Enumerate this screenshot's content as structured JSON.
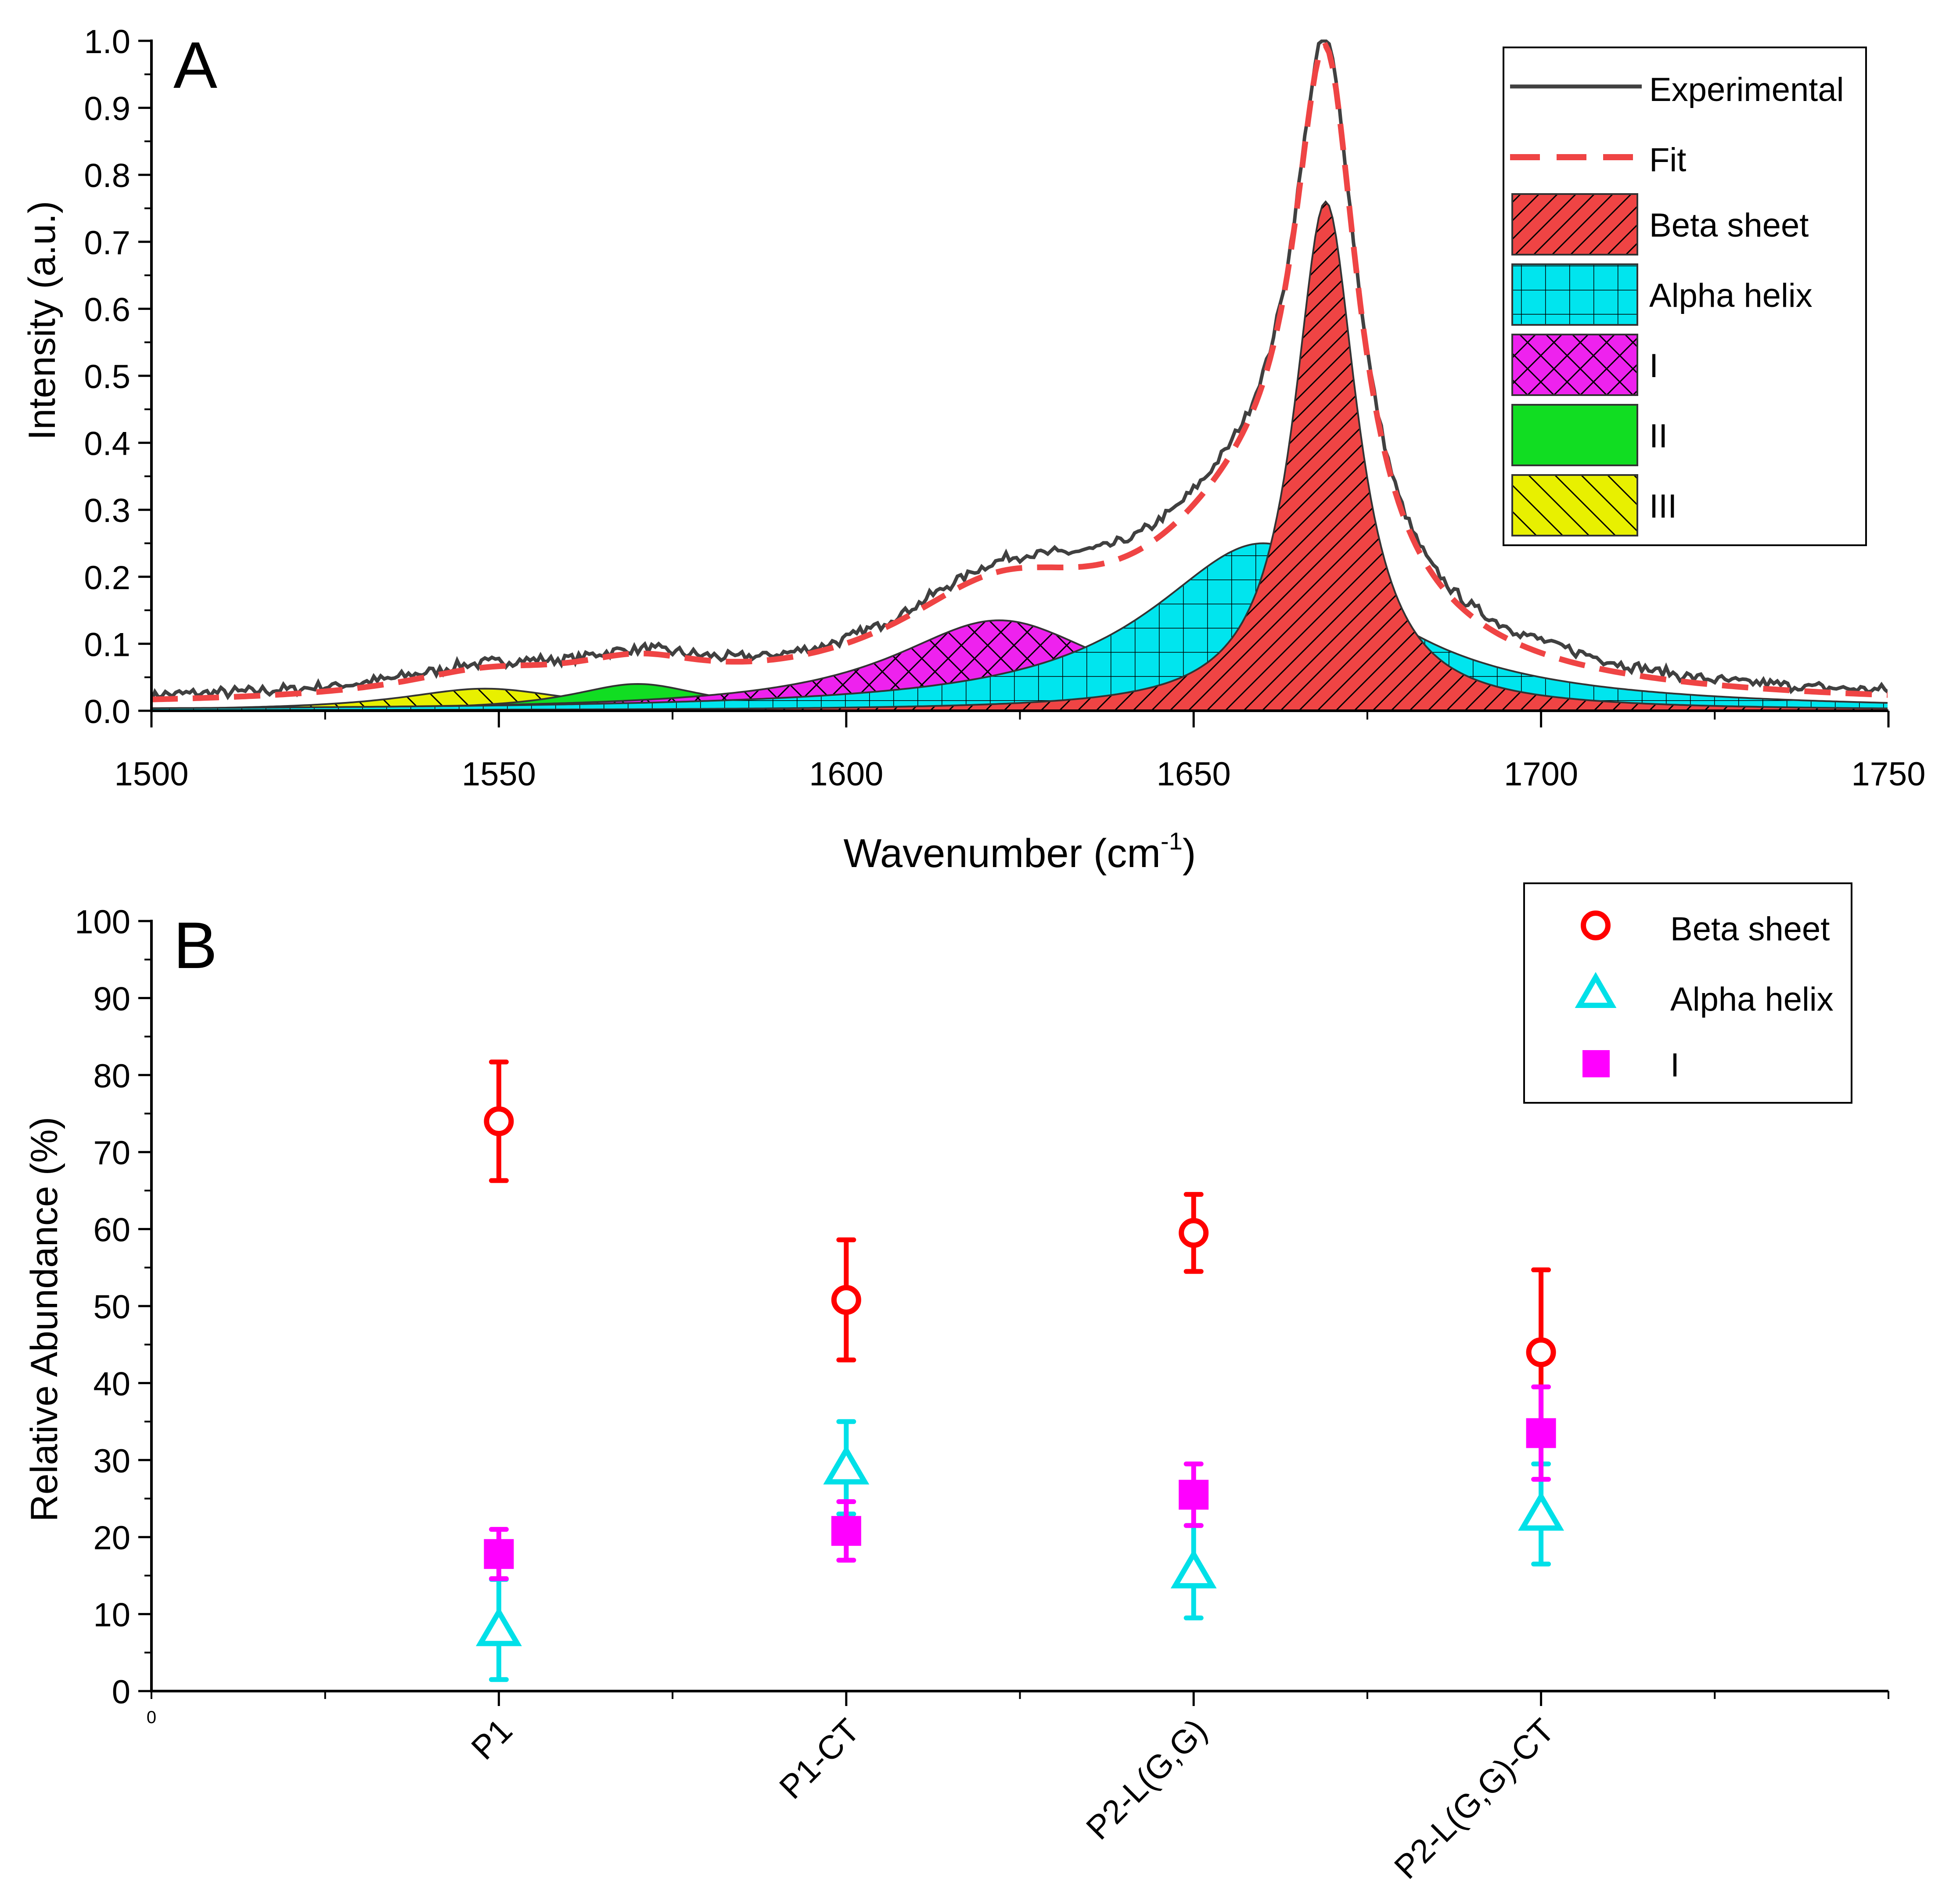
{
  "chart_data": [
    {
      "panel_label": "A",
      "type": "area",
      "title": "",
      "xlabel_base": "Wavenumber (cm",
      "xlabel_sup": "-1",
      "xlabel_close": ")",
      "ylabel": "Intensity (a.u.)",
      "xlim": [
        1500,
        1750
      ],
      "ylim": [
        0,
        1.0
      ],
      "x_ticks": [
        1500,
        1550,
        1600,
        1650,
        1700,
        1750
      ],
      "x_tick_labels": [
        "1500",
        "1550",
        "1600",
        "1650",
        "1700",
        "1750"
      ],
      "y_ticks": [
        0,
        0.1,
        0.2,
        0.3,
        0.4,
        0.5,
        0.6,
        0.7,
        0.8,
        0.9,
        1.0
      ],
      "y_tick_labels": [
        "0.0",
        "0.1",
        "0.2",
        "0.3",
        "0.4",
        "0.5",
        "0.6",
        "0.7",
        "0.8",
        "0.9",
        "1.0"
      ],
      "legend_position": "top-right",
      "series": [
        {
          "name": "Experimental",
          "kind": "line",
          "color": "#404040"
        },
        {
          "name": "Fit",
          "kind": "dashed-line",
          "color": "#ef4444"
        }
      ],
      "components": [
        {
          "name": "Beta sheet",
          "center": 1669,
          "amplitude": 0.76,
          "hwhm": 5.5,
          "color": "#ef4444",
          "pattern": "diagonal"
        },
        {
          "name": "Alpha helix",
          "center": 1660,
          "amplitude": 0.25,
          "hwhm": 20,
          "color": "#00e5ee",
          "pattern": "grid"
        },
        {
          "name": "I",
          "center": 1622,
          "amplitude": 0.135,
          "hwhm": 19,
          "color": "#ee22ee",
          "pattern": "crosshatch"
        },
        {
          "name": "II",
          "center": 1570,
          "amplitude": 0.04,
          "hwhm": 12,
          "color": "#11dd22",
          "pattern": "none"
        },
        {
          "name": "III",
          "center": 1548,
          "amplitude": 0.033,
          "hwhm": 15,
          "color": "#e8f000",
          "pattern": "antidiagonal"
        }
      ],
      "experimental_baseline": 0.012,
      "fit_baseline": 0.005
    },
    {
      "panel_label": "B",
      "type": "scatter",
      "title": "",
      "xlabel": "",
      "ylabel": "Relative Abundance (%)",
      "ylim": [
        0,
        100
      ],
      "y_ticks": [
        0,
        10,
        20,
        30,
        40,
        50,
        60,
        70,
        80,
        90,
        100
      ],
      "y_tick_labels": [
        "0",
        "10",
        "20",
        "30",
        "40",
        "50",
        "60",
        "70",
        "80",
        "90",
        "100"
      ],
      "x_origin_label": "0",
      "categories": [
        "P1",
        "P1-CT",
        "P2-L(G,G)",
        "P2-L(G,G)-CT"
      ],
      "legend_position": "top-right",
      "series": [
        {
          "name": "Beta sheet",
          "marker": "open-circle",
          "color": "#ff0000",
          "values": [
            74,
            50.8,
            59.5,
            44
          ],
          "errors": [
            7.7,
            7.8,
            5,
            10.7
          ]
        },
        {
          "name": "Alpha helix",
          "marker": "open-triangle",
          "color": "#00e0e8",
          "values": [
            8,
            29,
            15.5,
            23
          ],
          "errors": [
            6.5,
            6,
            6,
            6.5
          ]
        },
        {
          "name": "I",
          "marker": "filled-square",
          "color": "#ff00ff",
          "values": [
            17.8,
            20.8,
            25.5,
            33.5
          ],
          "errors": [
            3.2,
            3.8,
            4,
            6
          ]
        }
      ]
    }
  ]
}
